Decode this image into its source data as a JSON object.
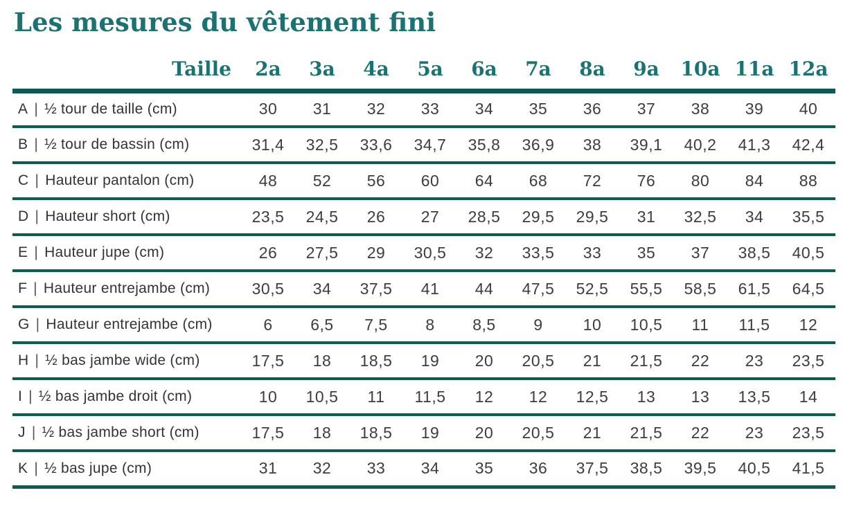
{
  "page": {
    "title": "Les mesures du vêtement fini"
  },
  "colors": {
    "accent": "#1a7372",
    "rule": "#0e5a57",
    "text": "#3d3d3d"
  },
  "table": {
    "divider": "|",
    "header": {
      "label": "Taille",
      "sizes": [
        "2a",
        "3a",
        "4a",
        "5a",
        "6a",
        "7a",
        "8a",
        "9a",
        "10a",
        "11a",
        "12a"
      ]
    },
    "rows": [
      {
        "code": "A",
        "label": "½ tour de taille (cm)",
        "values": [
          "30",
          "31",
          "32",
          "33",
          "34",
          "35",
          "36",
          "37",
          "38",
          "39",
          "40"
        ]
      },
      {
        "code": "B",
        "label": "½ tour de bassin (cm)",
        "values": [
          "31,4",
          "32,5",
          "33,6",
          "34,7",
          "35,8",
          "36,9",
          "38",
          "39,1",
          "40,2",
          "41,3",
          "42,4"
        ]
      },
      {
        "code": "C",
        "label": "Hauteur pantalon (cm)",
        "values": [
          "48",
          "52",
          "56",
          "60",
          "64",
          "68",
          "72",
          "76",
          "80",
          "84",
          "88"
        ]
      },
      {
        "code": "D",
        "label": "Hauteur short (cm)",
        "values": [
          "23,5",
          "24,5",
          "26",
          "27",
          "28,5",
          "29,5",
          "29,5",
          "31",
          "32,5",
          "34",
          "35,5"
        ]
      },
      {
        "code": "E",
        "label": "Hauteur jupe (cm)",
        "values": [
          "26",
          "27,5",
          "29",
          "30,5",
          "32",
          "33,5",
          "33",
          "35",
          "37",
          "38,5",
          "40,5"
        ]
      },
      {
        "code": "F",
        "label": "Hauteur entrejambe (cm)",
        "values": [
          "30,5",
          "34",
          "37,5",
          "41",
          "44",
          "47,5",
          "52,5",
          "55,5",
          "58,5",
          "61,5",
          "64,5"
        ]
      },
      {
        "code": "G",
        "label": "Hauteur entrejambe (cm)",
        "values": [
          "6",
          "6,5",
          "7,5",
          "8",
          "8,5",
          "9",
          "10",
          "10,5",
          "11",
          "11,5",
          "12"
        ]
      },
      {
        "code": "H",
        "label": "½ bas jambe wide (cm)",
        "values": [
          "17,5",
          "18",
          "18,5",
          "19",
          "20",
          "20,5",
          "21",
          "21,5",
          "22",
          "23",
          "23,5"
        ]
      },
      {
        "code": "I",
        "label": "½ bas jambe droit (cm)",
        "values": [
          "10",
          "10,5",
          "11",
          "11,5",
          "12",
          "12",
          "12,5",
          "13",
          "13",
          "13,5",
          "14"
        ]
      },
      {
        "code": "J",
        "label": "½ bas jambe short (cm)",
        "values": [
          "17,5",
          "18",
          "18,5",
          "19",
          "20",
          "20,5",
          "21",
          "21,5",
          "22",
          "23",
          "23,5"
        ]
      },
      {
        "code": "K",
        "label": "½ bas jupe (cm)",
        "values": [
          "31",
          "32",
          "33",
          "34",
          "35",
          "36",
          "37,5",
          "38,5",
          "39,5",
          "40,5",
          "41,5"
        ]
      }
    ]
  }
}
